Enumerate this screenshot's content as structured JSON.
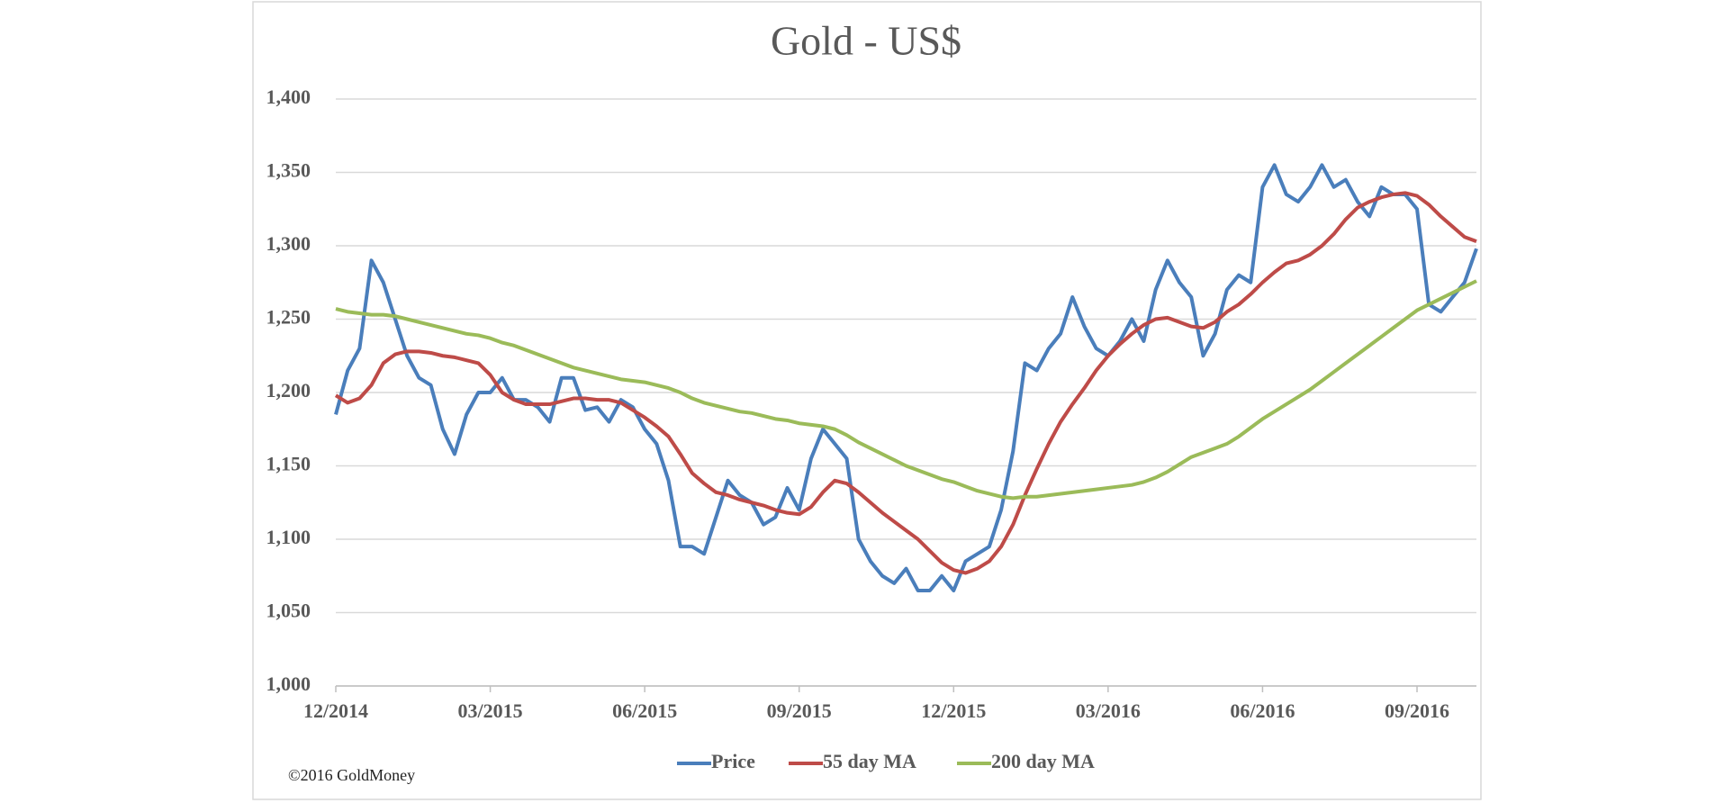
{
  "chart_data": {
    "type": "line",
    "title": "Gold - US$",
    "source": "©2016 GoldMoney",
    "categories": [
      "12/2014",
      null,
      null,
      null,
      null,
      null,
      null,
      null,
      null,
      null,
      null,
      null,
      null,
      "03/2015",
      null,
      null,
      null,
      null,
      null,
      null,
      null,
      null,
      null,
      null,
      null,
      null,
      "06/2015",
      null,
      null,
      null,
      null,
      null,
      null,
      null,
      null,
      null,
      null,
      null,
      null,
      "09/2015",
      null,
      null,
      null,
      null,
      null,
      null,
      null,
      null,
      null,
      null,
      null,
      null,
      "12/2015",
      null,
      null,
      null,
      null,
      null,
      null,
      null,
      null,
      null,
      null,
      null,
      null,
      "03/2016",
      null,
      null,
      null,
      null,
      null,
      null,
      null,
      null,
      null,
      null,
      null,
      null,
      "06/2016",
      null,
      null,
      null,
      null,
      null,
      null,
      null,
      null,
      null,
      null,
      null,
      null,
      "09/2016",
      null,
      null,
      null,
      null,
      null
    ],
    "series": [
      {
        "name": "Price",
        "color": "#4a7ebb",
        "values": [
          1185,
          1215,
          1230,
          1290,
          1275,
          1250,
          1225,
          1210,
          1205,
          1175,
          1158,
          1185,
          1200,
          1200,
          1210,
          1195,
          1195,
          1190,
          1180,
          1210,
          1210,
          1188,
          1190,
          1180,
          1195,
          1190,
          1175,
          1165,
          1140,
          1095,
          1095,
          1090,
          1115,
          1140,
          1130,
          1125,
          1110,
          1115,
          1135,
          1120,
          1155,
          1175,
          1165,
          1155,
          1100,
          1085,
          1075,
          1070,
          1080,
          1065,
          1065,
          1075,
          1065,
          1085,
          1090,
          1095,
          1120,
          1160,
          1220,
          1215,
          1230,
          1240,
          1265,
          1245,
          1230,
          1225,
          1235,
          1250,
          1235,
          1270,
          1290,
          1275,
          1265,
          1225,
          1240,
          1270,
          1280,
          1275,
          1340,
          1355,
          1335,
          1330,
          1340,
          1355,
          1340,
          1345,
          1330,
          1320,
          1340,
          1335,
          1335,
          1325,
          1260,
          1255,
          1265,
          1275,
          1298
        ]
      },
      {
        "name": "55 day MA",
        "color": "#be4b48",
        "values": [
          1198,
          1193,
          1196,
          1205,
          1220,
          1226,
          1228,
          1228,
          1227,
          1225,
          1224,
          1222,
          1220,
          1212,
          1200,
          1195,
          1192,
          1192,
          1192,
          1194,
          1196,
          1196,
          1195,
          1195,
          1193,
          1188,
          1183,
          1177,
          1170,
          1158,
          1145,
          1138,
          1132,
          1130,
          1127,
          1125,
          1123,
          1120,
          1118,
          1117,
          1122,
          1132,
          1140,
          1138,
          1132,
          1125,
          1118,
          1112,
          1106,
          1100,
          1092,
          1084,
          1079,
          1077,
          1080,
          1085,
          1095,
          1110,
          1130,
          1148,
          1165,
          1180,
          1192,
          1203,
          1215,
          1225,
          1233,
          1240,
          1246,
          1250,
          1251,
          1248,
          1245,
          1244,
          1248,
          1255,
          1260,
          1267,
          1275,
          1282,
          1288,
          1290,
          1294,
          1300,
          1308,
          1318,
          1326,
          1330,
          1333,
          1335,
          1336,
          1334,
          1328,
          1320,
          1313,
          1306,
          1303
        ]
      },
      {
        "name": "200 day MA",
        "color": "#9bbb59",
        "values": [
          1257,
          1255,
          1254,
          1253,
          1253,
          1252,
          1250,
          1248,
          1246,
          1244,
          1242,
          1240,
          1239,
          1237,
          1234,
          1232,
          1229,
          1226,
          1223,
          1220,
          1217,
          1215,
          1213,
          1211,
          1209,
          1208,
          1207,
          1205,
          1203,
          1200,
          1196,
          1193,
          1191,
          1189,
          1187,
          1186,
          1184,
          1182,
          1181,
          1179,
          1178,
          1177,
          1175,
          1171,
          1166,
          1162,
          1158,
          1154,
          1150,
          1147,
          1144,
          1141,
          1139,
          1136,
          1133,
          1131,
          1129,
          1128,
          1129,
          1129,
          1130,
          1131,
          1132,
          1133,
          1134,
          1135,
          1136,
          1137,
          1139,
          1142,
          1146,
          1151,
          1156,
          1159,
          1162,
          1165,
          1170,
          1176,
          1182,
          1187,
          1192,
          1197,
          1202,
          1208,
          1214,
          1220,
          1226,
          1232,
          1238,
          1244,
          1250,
          1256,
          1260,
          1264,
          1268,
          1272,
          1276
        ]
      }
    ],
    "ylim": [
      1000,
      1400
    ],
    "yticks": [
      {
        "value": 1000,
        "label": "1,000"
      },
      {
        "value": 1050,
        "label": "1,050"
      },
      {
        "value": 1100,
        "label": "1,100"
      },
      {
        "value": 1150,
        "label": "1,150"
      },
      {
        "value": 1200,
        "label": "1,200"
      },
      {
        "value": 1250,
        "label": "1,250"
      },
      {
        "value": 1300,
        "label": "1,300"
      },
      {
        "value": 1350,
        "label": "1,350"
      },
      {
        "value": 1400,
        "label": "1,400"
      }
    ],
    "grid": true,
    "legend": "bottom"
  }
}
